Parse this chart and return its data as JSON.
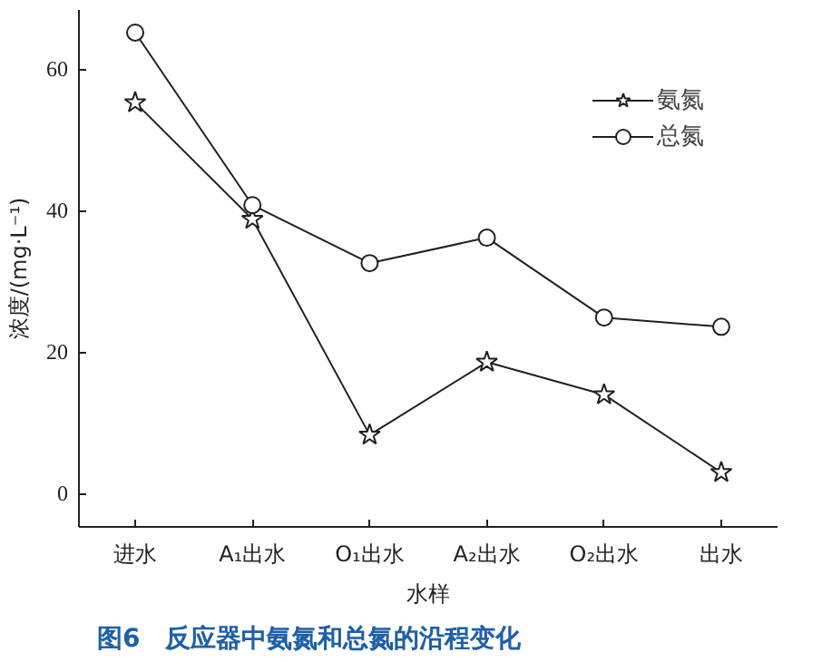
{
  "chart_data": {
    "type": "line",
    "xlabel": "水样",
    "ylabel": "浓度/(mg·L⁻¹)",
    "categories": [
      "进水",
      "A₁出水",
      "O₁出水",
      "A₂出水",
      "O₂出水",
      "出水"
    ],
    "series": [
      {
        "name": "氨氮",
        "color": "#231f20",
        "marker": "star",
        "values": [
          55.3,
          38.8,
          8.3,
          18.6,
          14.0,
          3.0
        ]
      },
      {
        "name": "总氮",
        "color": "#231f20",
        "marker": "circle",
        "values": [
          65.2,
          40.8,
          32.6,
          36.2,
          24.9,
          23.6
        ]
      }
    ],
    "ylim": [
      -4.7,
      68.4
    ],
    "yticks": [
      0,
      20,
      40,
      60
    ],
    "grid": false,
    "legend": "top right",
    "line_style": "solid",
    "annotations": [
      "图6　反应器中氨氮和总氮的沿程变化"
    ]
  }
}
